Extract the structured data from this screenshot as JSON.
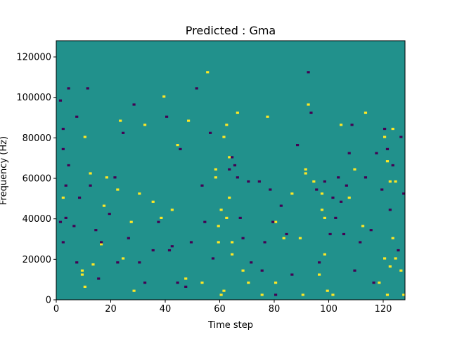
{
  "chart_data": {
    "type": "heatmap",
    "title": "Predicted : Gma",
    "xlabel": "Time step",
    "ylabel": "Frequency (Hz)",
    "xlim": [
      0,
      128
    ],
    "ylim": [
      0,
      128000
    ],
    "x_ticks": [
      0,
      20,
      40,
      60,
      80,
      100,
      120
    ],
    "y_ticks": [
      0,
      20000,
      40000,
      60000,
      80000,
      100000,
      120000
    ],
    "x_tick_labels": [
      "0",
      "20",
      "40",
      "60",
      "80",
      "100",
      "120"
    ],
    "y_tick_labels": [
      "0",
      "20000",
      "40000",
      "60000",
      "80000",
      "100000",
      "120000"
    ],
    "n_time_steps": 128,
    "n_freq_bins": 128,
    "value_levels": [
      -1,
      0,
      1
    ],
    "colors": {
      "low": "#440154",
      "mid": "#21918c",
      "high": "#fde725"
    },
    "background_level": 0,
    "high_cells": [
      [
        2,
        50
      ],
      [
        9,
        12,
        14
      ],
      [
        10,
        6
      ],
      [
        10,
        80
      ],
      [
        12,
        62
      ],
      [
        13,
        17
      ],
      [
        16,
        27
      ],
      [
        17,
        46
      ],
      [
        18,
        60
      ],
      [
        22,
        54
      ],
      [
        23,
        88
      ],
      [
        24,
        20
      ],
      [
        27,
        38
      ],
      [
        28,
        4
      ],
      [
        30,
        52
      ],
      [
        32,
        86
      ],
      [
        35,
        48
      ],
      [
        38,
        40
      ],
      [
        39,
        100
      ],
      [
        42,
        44
      ],
      [
        44,
        76
      ],
      [
        47,
        10
      ],
      [
        48,
        88
      ],
      [
        53,
        8
      ],
      [
        55,
        112
      ],
      [
        58,
        60,
        64
      ],
      [
        59,
        28,
        36
      ],
      [
        60,
        2,
        44
      ],
      [
        61,
        4,
        80
      ],
      [
        62,
        40,
        86
      ],
      [
        63,
        50,
        70
      ],
      [
        64,
        22,
        28
      ],
      [
        66,
        92
      ],
      [
        68,
        14
      ],
      [
        70,
        8
      ],
      [
        75,
        2
      ],
      [
        77,
        90
      ],
      [
        80,
        8,
        38
      ],
      [
        83,
        30
      ],
      [
        86,
        52
      ],
      [
        89,
        30
      ],
      [
        90,
        2
      ],
      [
        91,
        62,
        64
      ],
      [
        92,
        96
      ],
      [
        94,
        58
      ],
      [
        96,
        12
      ],
      [
        97,
        44,
        52
      ],
      [
        98,
        22,
        40
      ],
      [
        99,
        4
      ],
      [
        101,
        2
      ],
      [
        104,
        86
      ],
      [
        107,
        50
      ],
      [
        109,
        64
      ],
      [
        112,
        36
      ],
      [
        113,
        92
      ],
      [
        118,
        8
      ],
      [
        120,
        20,
        80
      ],
      [
        121,
        2,
        68
      ],
      [
        122,
        16,
        58
      ],
      [
        123,
        30,
        84
      ],
      [
        124,
        20,
        58
      ],
      [
        126,
        14
      ],
      [
        127,
        2
      ]
    ],
    "low_cells": [
      [
        1,
        38,
        98
      ],
      [
        2,
        28,
        74,
        84
      ],
      [
        3,
        40,
        56
      ],
      [
        4,
        66,
        104
      ],
      [
        6,
        36
      ],
      [
        7,
        18,
        90
      ],
      [
        8,
        50
      ],
      [
        11,
        104
      ],
      [
        12,
        56
      ],
      [
        14,
        34
      ],
      [
        15,
        10
      ],
      [
        16,
        28
      ],
      [
        19,
        42
      ],
      [
        21,
        60
      ],
      [
        22,
        18
      ],
      [
        24,
        82
      ],
      [
        26,
        30
      ],
      [
        28,
        96
      ],
      [
        30,
        18
      ],
      [
        32,
        8
      ],
      [
        35,
        24
      ],
      [
        37,
        38
      ],
      [
        40,
        90
      ],
      [
        41,
        24
      ],
      [
        42,
        26
      ],
      [
        44,
        8
      ],
      [
        45,
        74
      ],
      [
        47,
        6
      ],
      [
        49,
        28
      ],
      [
        51,
        104
      ],
      [
        53,
        56
      ],
      [
        54,
        38
      ],
      [
        56,
        82
      ],
      [
        57,
        20
      ],
      [
        63,
        64
      ],
      [
        64,
        70
      ],
      [
        65,
        66
      ],
      [
        66,
        60
      ],
      [
        67,
        40
      ],
      [
        68,
        30
      ],
      [
        70,
        58
      ],
      [
        71,
        18
      ],
      [
        74,
        58
      ],
      [
        75,
        14
      ],
      [
        76,
        28
      ],
      [
        78,
        54
      ],
      [
        79,
        38
      ],
      [
        80,
        2
      ],
      [
        82,
        46
      ],
      [
        84,
        32
      ],
      [
        86,
        12
      ],
      [
        88,
        76
      ],
      [
        92,
        112
      ],
      [
        93,
        92
      ],
      [
        95,
        54
      ],
      [
        96,
        18
      ],
      [
        98,
        58
      ],
      [
        100,
        32
      ],
      [
        101,
        50
      ],
      [
        102,
        40
      ],
      [
        103,
        60
      ],
      [
        104,
        48
      ],
      [
        105,
        32
      ],
      [
        106,
        56
      ],
      [
        107,
        72
      ],
      [
        108,
        86
      ],
      [
        109,
        14
      ],
      [
        111,
        28
      ],
      [
        113,
        60
      ],
      [
        115,
        34
      ],
      [
        116,
        8
      ],
      [
        117,
        72
      ],
      [
        119,
        54
      ],
      [
        120,
        84
      ],
      [
        121,
        74
      ],
      [
        122,
        44
      ],
      [
        123,
        66
      ],
      [
        125,
        24
      ],
      [
        126,
        80
      ],
      [
        127,
        52
      ]
    ]
  }
}
